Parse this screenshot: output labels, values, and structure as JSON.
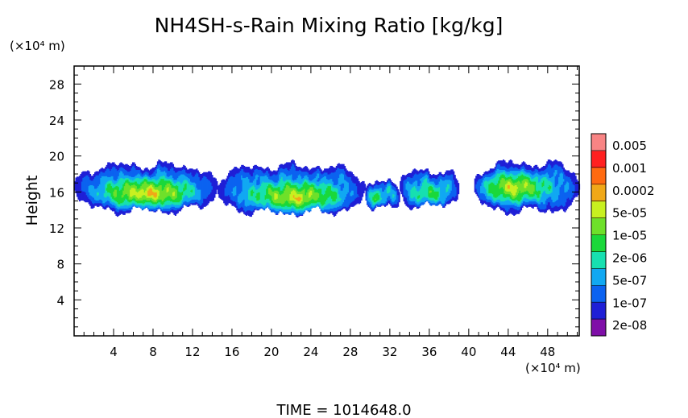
{
  "chart_data": {
    "type": "heatmap",
    "title": "NH4SH-s-Rain Mixing Ratio [kg/kg]",
    "xlabel": "(×10⁴ m)",
    "ylabel": "Height",
    "yunit": "(×10⁴ m)",
    "xlim": [
      0,
      51.2
    ],
    "ylim": [
      0,
      30
    ],
    "x_ticks": [
      "4",
      "8",
      "12",
      "16",
      "20",
      "24",
      "28",
      "32",
      "36",
      "40",
      "44",
      "48"
    ],
    "x_tick_values": [
      4,
      8,
      12,
      16,
      20,
      24,
      28,
      32,
      36,
      40,
      44,
      48
    ],
    "y_ticks": [
      "4",
      "8",
      "12",
      "16",
      "20",
      "24",
      "28"
    ],
    "y_tick_values": [
      4,
      8,
      12,
      16,
      20,
      24,
      28
    ],
    "colorbar": {
      "labels": [
        "0.005",
        "0.001",
        "0.0002",
        "5e-05",
        "1e-05",
        "2e-06",
        "5e-07",
        "1e-07",
        "2e-08"
      ],
      "colors": [
        "#7f0fa8",
        "#1f1fd6",
        "#0b62f0",
        "#11a8f2",
        "#17e0b0",
        "#1ad83a",
        "#6ee02a",
        "#c8f020",
        "#f0a818",
        "#ff6a10",
        "#ff2020",
        "#f88484"
      ]
    },
    "regions": [
      {
        "x0": 0.0,
        "x1": 14.5,
        "y0": 13.6,
        "y1": 19.3,
        "peak": 8.3,
        "cx": 7.5,
        "cy": 15.8
      },
      {
        "x0": 14.5,
        "x1": 29.5,
        "y0": 13.4,
        "y1": 19.2,
        "peak": 8.0,
        "cx": 22.5,
        "cy": 15.3
      },
      {
        "x0": 29.5,
        "x1": 33.0,
        "y0": 14.0,
        "y1": 17.5,
        "peak": 5.5,
        "cx": 30.5,
        "cy": 15.2
      },
      {
        "x0": 33.0,
        "x1": 39.0,
        "y0": 14.2,
        "y1": 18.6,
        "peak": 5.8,
        "cx": 36.0,
        "cy": 15.5
      },
      {
        "x0": 40.5,
        "x1": 51.2,
        "y0": 13.6,
        "y1": 19.5,
        "peak": 7.6,
        "cx": 44.5,
        "cy": 16.5
      }
    ],
    "time_label": "TIME = 1014648.0"
  }
}
